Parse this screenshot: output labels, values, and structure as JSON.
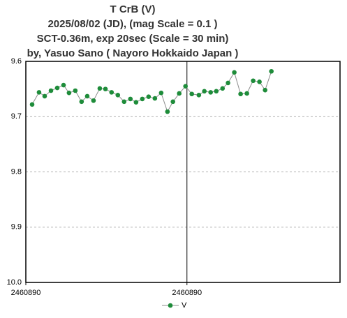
{
  "chart_data": {
    "type": "line",
    "title": [
      "T CrB  (V)",
      "2025/08/02 (JD),   (mag Scale = 0.1 )",
      "SCT-0.36m, exp 20sec (Scale = 30 min)",
      "by, Yasuo Sano ( Nayoro Hokkaido Japan )"
    ],
    "x": [
      2460889.9039,
      2460889.9082,
      2460889.9117,
      2460889.9156,
      2460889.9195,
      2460889.9234,
      2460889.9268,
      2460889.9307,
      2460889.9346,
      2460889.9381,
      2460889.942,
      2460889.9459,
      2460889.9494,
      2460889.9532,
      2460889.9571,
      2460889.961,
      2460889.9649,
      2460889.9684,
      2460889.9723,
      2460889.9762,
      2460889.9801,
      2460889.984,
      2460889.9879,
      2460889.9913,
      2460889.9952,
      2460889.9991,
      2460890.003,
      2460890.0074,
      2460890.0108,
      2460890.0147,
      2460890.0182,
      2460890.0221,
      2460890.0255,
      2460890.0294,
      2460890.0333,
      2460890.0372,
      2460890.0411,
      2460890.045,
      2460890.0485,
      2460890.0524
    ],
    "series": [
      {
        "name": "V",
        "color": "#1e8c3a",
        "line_color": "#8c8c8c",
        "values": [
          9.678,
          9.656,
          9.663,
          9.653,
          9.648,
          9.643,
          9.657,
          9.653,
          9.673,
          9.663,
          9.671,
          9.649,
          9.65,
          9.656,
          9.661,
          9.673,
          9.668,
          9.674,
          9.668,
          9.664,
          9.667,
          9.657,
          9.691,
          9.673,
          9.658,
          9.645,
          9.659,
          9.661,
          9.654,
          9.656,
          9.654,
          9.649,
          9.639,
          9.62,
          9.659,
          9.658,
          9.635,
          9.637,
          9.652,
          9.618
        ]
      }
    ],
    "xlim": [
      2460889.9,
      2460890.095
    ],
    "xticks": [
      {
        "value": 2460889.9,
        "label": "2460890"
      },
      {
        "value": 2460890.0,
        "label": "2460890"
      }
    ],
    "ylim": [
      9.6,
      10.0
    ],
    "y_inverted": true,
    "yticks": [
      9.6,
      9.7,
      9.8,
      9.9,
      {
        "value": 10.0,
        "label": "10.0"
      }
    ],
    "grid": true,
    "legend": "bottom"
  }
}
